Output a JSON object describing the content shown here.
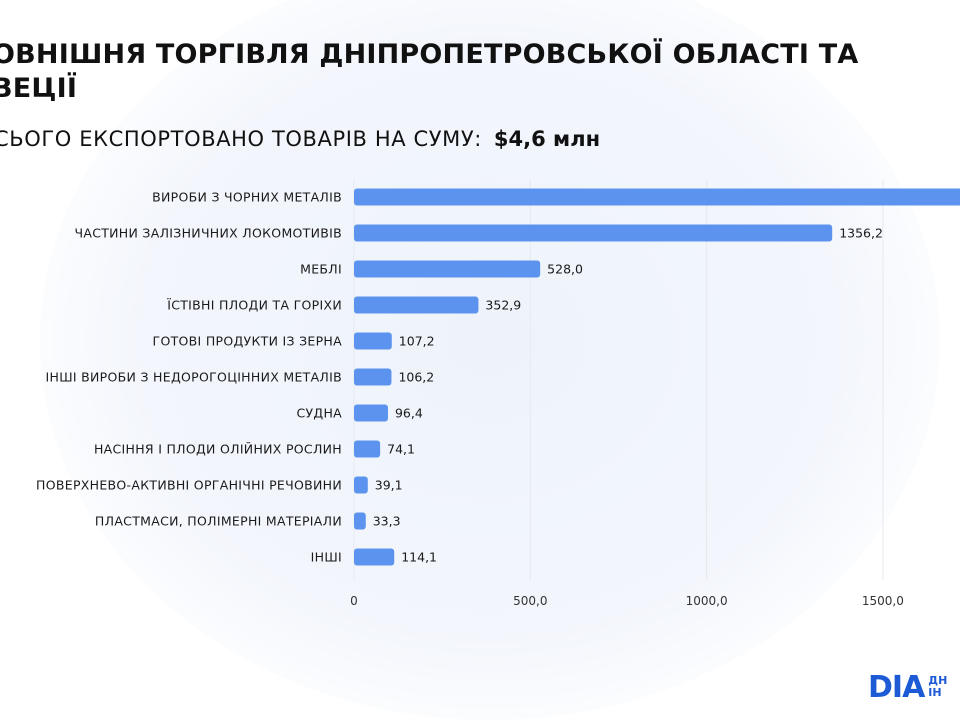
{
  "header": {
    "title": "ОВНІШНЯ ТОРГІВЛЯ ДНІПРОПЕТРОВСЬКОЇ ОБЛАСТІ ТА ВЕЦІЇ",
    "subtitle": "СЬОГО ЕКСПОРТОВАНО ТОВАРІВ НА СУМУ:",
    "total": "$4,6 млн"
  },
  "logo": {
    "text": "DІA",
    "sub1": "ДН",
    "sub2": "ІН"
  },
  "colors": {
    "bar": "#5b93ee",
    "grid": "#e6e9ef"
  },
  "chart_data": {
    "type": "bar",
    "orientation": "horizontal",
    "categories": [
      "ВИРОБИ З ЧОРНИХ МЕТАЛІВ",
      "ЧАСТИНИ ЗАЛІЗНИЧНИХ ЛОКОМОТИВІВ",
      "МЕБЛІ",
      "ЇСТІВНІ ПЛОДИ ТА ГОРІХИ",
      "ГОТОВІ ПРОДУКТИ ІЗ ЗЕРНА",
      "ІНШІ ВИРОБИ З НЕДОРОГОЦІННИХ МЕТАЛІВ",
      "СУДНА",
      "НАСІННЯ І ПЛОДИ ОЛІЙНИХ РОСЛИН",
      "ПОВЕРХНЕВО-АКТИВНІ ОРГАНІЧНІ РЕЧОВИНИ",
      "ПЛАСТМАСИ, ПОЛІМЕРНІ МАТЕРІАЛИ",
      "ІНШІ"
    ],
    "values": [
      1800,
      1356.2,
      528.0,
      352.9,
      107.2,
      106.2,
      96.4,
      74.1,
      39.1,
      33.3,
      114.1
    ],
    "value_labels": [
      "",
      "1356,2",
      "528,0",
      "352,9",
      "107,2",
      "106,2",
      "96,4",
      "74,1",
      "39,1",
      "33,3",
      "114,1"
    ],
    "x_ticks": [
      0,
      500,
      1000,
      1500
    ],
    "x_tick_labels": [
      "0",
      "500,0",
      "1000,0",
      "1500,0"
    ],
    "xlim": [
      0,
      1725
    ],
    "grid": "vertical"
  }
}
